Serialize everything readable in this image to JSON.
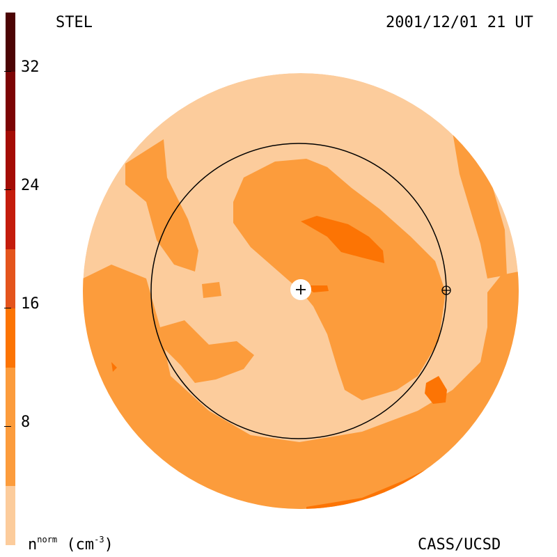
{
  "header": {
    "left_label": "STEL",
    "right_label": "2001/12/01 21 UT"
  },
  "footer": {
    "unit_base": "n",
    "unit_sup": "norm",
    "unit_rest": "(cm",
    "unit_exp": "-3",
    "unit_close": ")",
    "credit": "CASS/UCSD"
  },
  "colorbar": {
    "ticks": [
      "8",
      "16",
      "24",
      "32"
    ],
    "colors": [
      "#fccc9c",
      "#fc9c3c",
      "#fc7404",
      "#e4541c",
      "#c41c0c",
      "#a40c04",
      "#7c0404",
      "#4c0404",
      "#240000"
    ]
  },
  "map": {
    "colors": {
      "light": "#fccc9c",
      "medium": "#fc9c3c",
      "dark": "#fc7404",
      "outline": "#000000",
      "sun": "#ffffff"
    },
    "sun_marker": "+",
    "earth_marker": "circle-plus"
  }
}
